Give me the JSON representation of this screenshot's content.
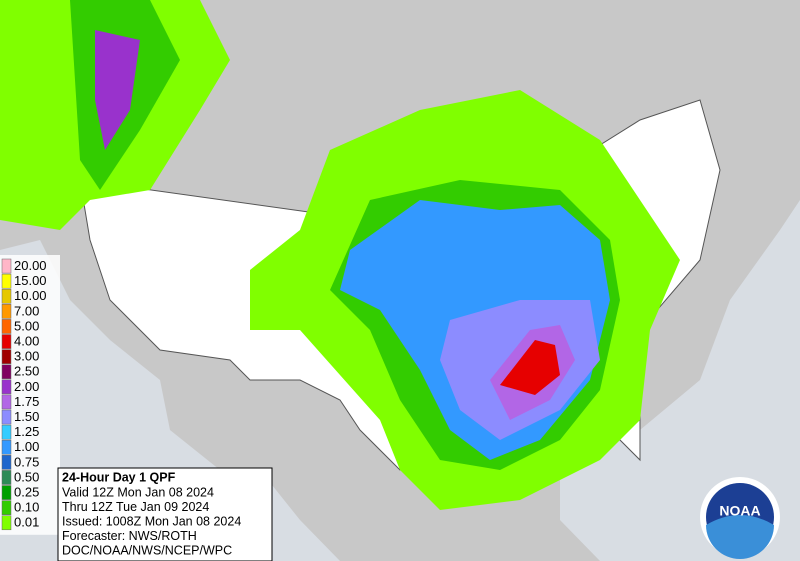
{
  "legend": [
    {
      "label": "20.00",
      "color": "#ffb6c8"
    },
    {
      "label": "15.00",
      "color": "#ffff00"
    },
    {
      "label": "10.00",
      "color": "#e6c800"
    },
    {
      "label": "7.00",
      "color": "#ff9900"
    },
    {
      "label": "5.00",
      "color": "#ff6600"
    },
    {
      "label": "4.00",
      "color": "#e60000"
    },
    {
      "label": "3.00",
      "color": "#a00000"
    },
    {
      "label": "2.50",
      "color": "#800060"
    },
    {
      "label": "2.00",
      "color": "#9932cc"
    },
    {
      "label": "1.75",
      "color": "#b266e6"
    },
    {
      "label": "1.50",
      "color": "#8c8cff"
    },
    {
      "label": "1.25",
      "color": "#33ccff"
    },
    {
      "label": "1.00",
      "color": "#3399ff"
    },
    {
      "label": "0.75",
      "color": "#1f66cc"
    },
    {
      "label": "0.50",
      "color": "#2e8b57"
    },
    {
      "label": "0.25",
      "color": "#00a000"
    },
    {
      "label": "0.10",
      "color": "#33cc00"
    },
    {
      "label": "0.01",
      "color": "#80ff00"
    }
  ],
  "info": {
    "title": "24-Hour Day 1 QPF",
    "lines": [
      "Valid 12Z Mon Jan 08 2024",
      "Thru 12Z Tue Jan 09 2024",
      "Issued: 1008Z Mon Jan 08 2024",
      "Forecaster: NWS/ROTH",
      "DOC/NOAA/NWS/NCEP/WPC"
    ]
  },
  "logo": "NOAA"
}
